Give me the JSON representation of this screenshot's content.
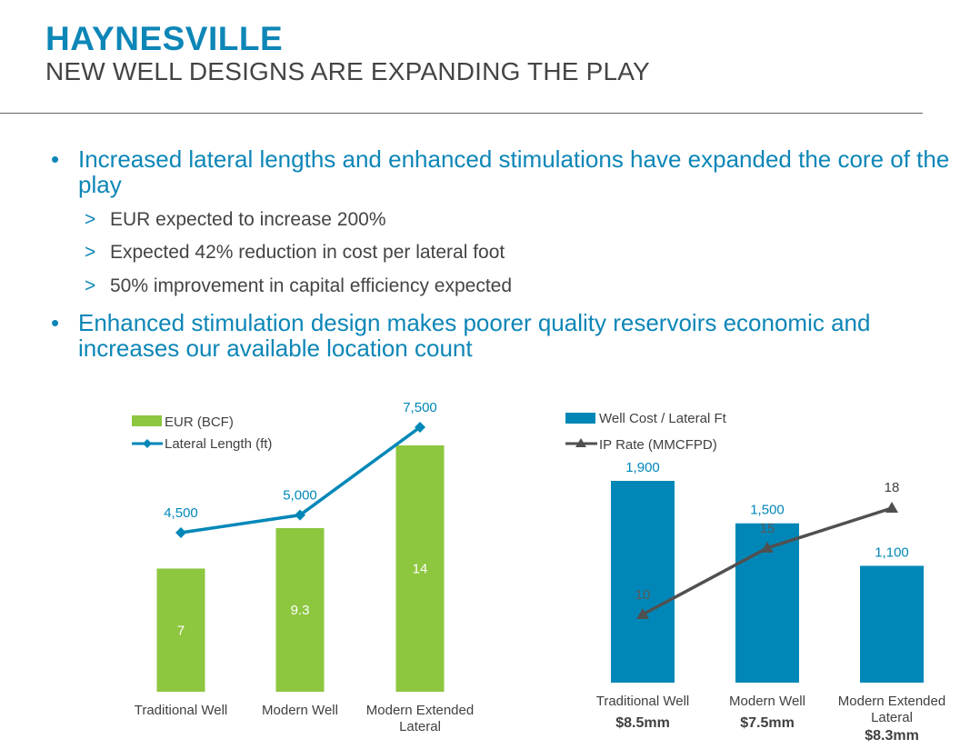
{
  "header": {
    "title": "HAYNESVILLE",
    "subtitle": "NEW WELL DESIGNS ARE EXPANDING THE PLAY"
  },
  "bullets": [
    {
      "text": "Increased lateral lengths and enhanced stimulations have expanded the core of the play",
      "subs": [
        "EUR expected to increase 200%",
        "Expected 42% reduction in cost per lateral foot",
        "50% improvement in capital efficiency expected"
      ]
    },
    {
      "text": "Enhanced stimulation design makes poorer quality reservoirs economic and increases our available location count",
      "subs": []
    }
  ],
  "bullet_symbol": "•",
  "sub_symbol": ">",
  "colors": {
    "accent": "#0d86b7",
    "green": "#8dc63f",
    "blue": "#0087b8",
    "line_gray": "#505050"
  },
  "chart_data": [
    {
      "type": "bar",
      "categories": [
        "Traditional Well",
        "Modern Well",
        "Modern Extended Lateral"
      ],
      "series": [
        {
          "name": "EUR (BCF)",
          "kind": "bar",
          "values": [
            7,
            9.3,
            14
          ],
          "labels": [
            "7",
            "9.3",
            "14"
          ]
        },
        {
          "name": "Lateral Length (ft)",
          "kind": "line",
          "values": [
            4500,
            5000,
            7500
          ],
          "labels": [
            "4,500",
            "5,000",
            "7,500"
          ]
        }
      ],
      "legend_position": "top-left"
    },
    {
      "type": "bar",
      "categories": [
        "Traditional Well",
        "Modern Well",
        "Modern Extended Lateral"
      ],
      "category_sublabels": [
        "$8.5mm",
        "$7.5mm",
        "$8.3mm"
      ],
      "series": [
        {
          "name": "Well Cost / Lateral Ft",
          "kind": "bar",
          "values": [
            1900,
            1500,
            1100
          ],
          "labels": [
            "1,900",
            "1,500",
            "1,100"
          ]
        },
        {
          "name": "IP Rate (MMCFPD)",
          "kind": "line",
          "values": [
            10,
            15,
            18
          ],
          "labels": [
            "10",
            "15",
            "18"
          ]
        }
      ],
      "legend_position": "top-left"
    }
  ]
}
